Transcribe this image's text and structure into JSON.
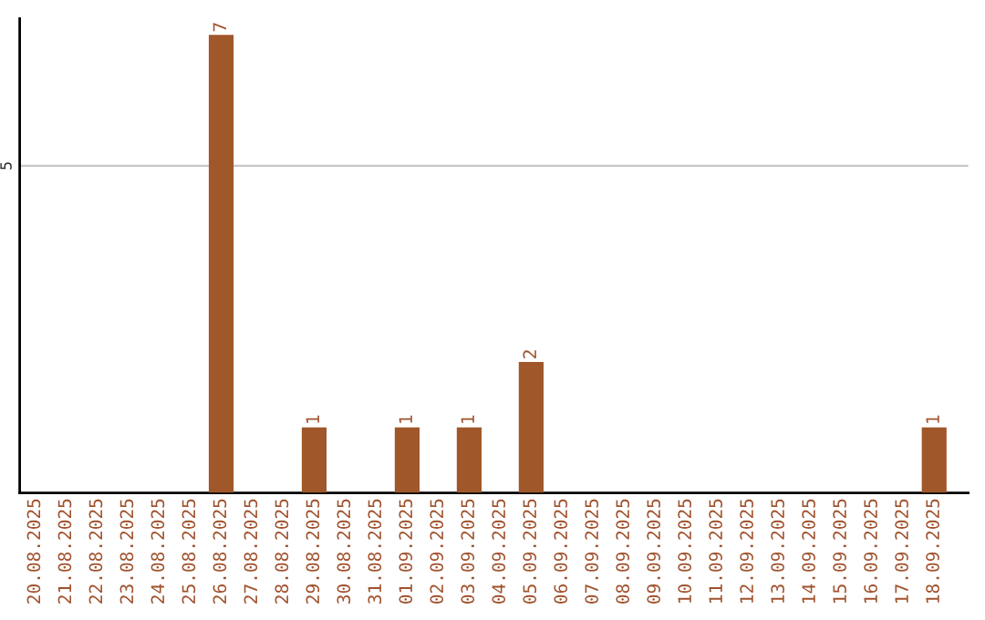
{
  "chart_data": {
    "type": "bar",
    "categories": [
      "20.08.2025",
      "21.08.2025",
      "22.08.2025",
      "23.08.2025",
      "24.08.2025",
      "25.08.2025",
      "26.08.2025",
      "27.08.2025",
      "28.08.2025",
      "29.08.2025",
      "30.08.2025",
      "31.08.2025",
      "01.09.2025",
      "02.09.2025",
      "03.09.2025",
      "04.09.2025",
      "05.09.2025",
      "06.09.2025",
      "07.09.2025",
      "08.09.2025",
      "09.09.2025",
      "10.09.2025",
      "11.09.2025",
      "12.09.2025",
      "13.09.2025",
      "14.09.2025",
      "15.09.2025",
      "16.09.2025",
      "17.09.2025",
      "18.09.2025"
    ],
    "values": [
      0,
      0,
      0,
      0,
      0,
      0,
      7,
      0,
      0,
      1,
      0,
      0,
      1,
      0,
      1,
      0,
      2,
      0,
      0,
      0,
      0,
      0,
      0,
      0,
      0,
      0,
      0,
      0,
      0,
      1
    ],
    "value_labels": [
      null,
      null,
      null,
      null,
      null,
      null,
      "7",
      null,
      null,
      "1",
      null,
      null,
      "1",
      null,
      "1",
      null,
      "2",
      null,
      null,
      null,
      null,
      null,
      null,
      null,
      null,
      null,
      null,
      null,
      null,
      "1"
    ],
    "color": "#a0572a",
    "ylim": [
      0,
      7.25
    ],
    "yticks": [
      5
    ],
    "grid": "y"
  }
}
